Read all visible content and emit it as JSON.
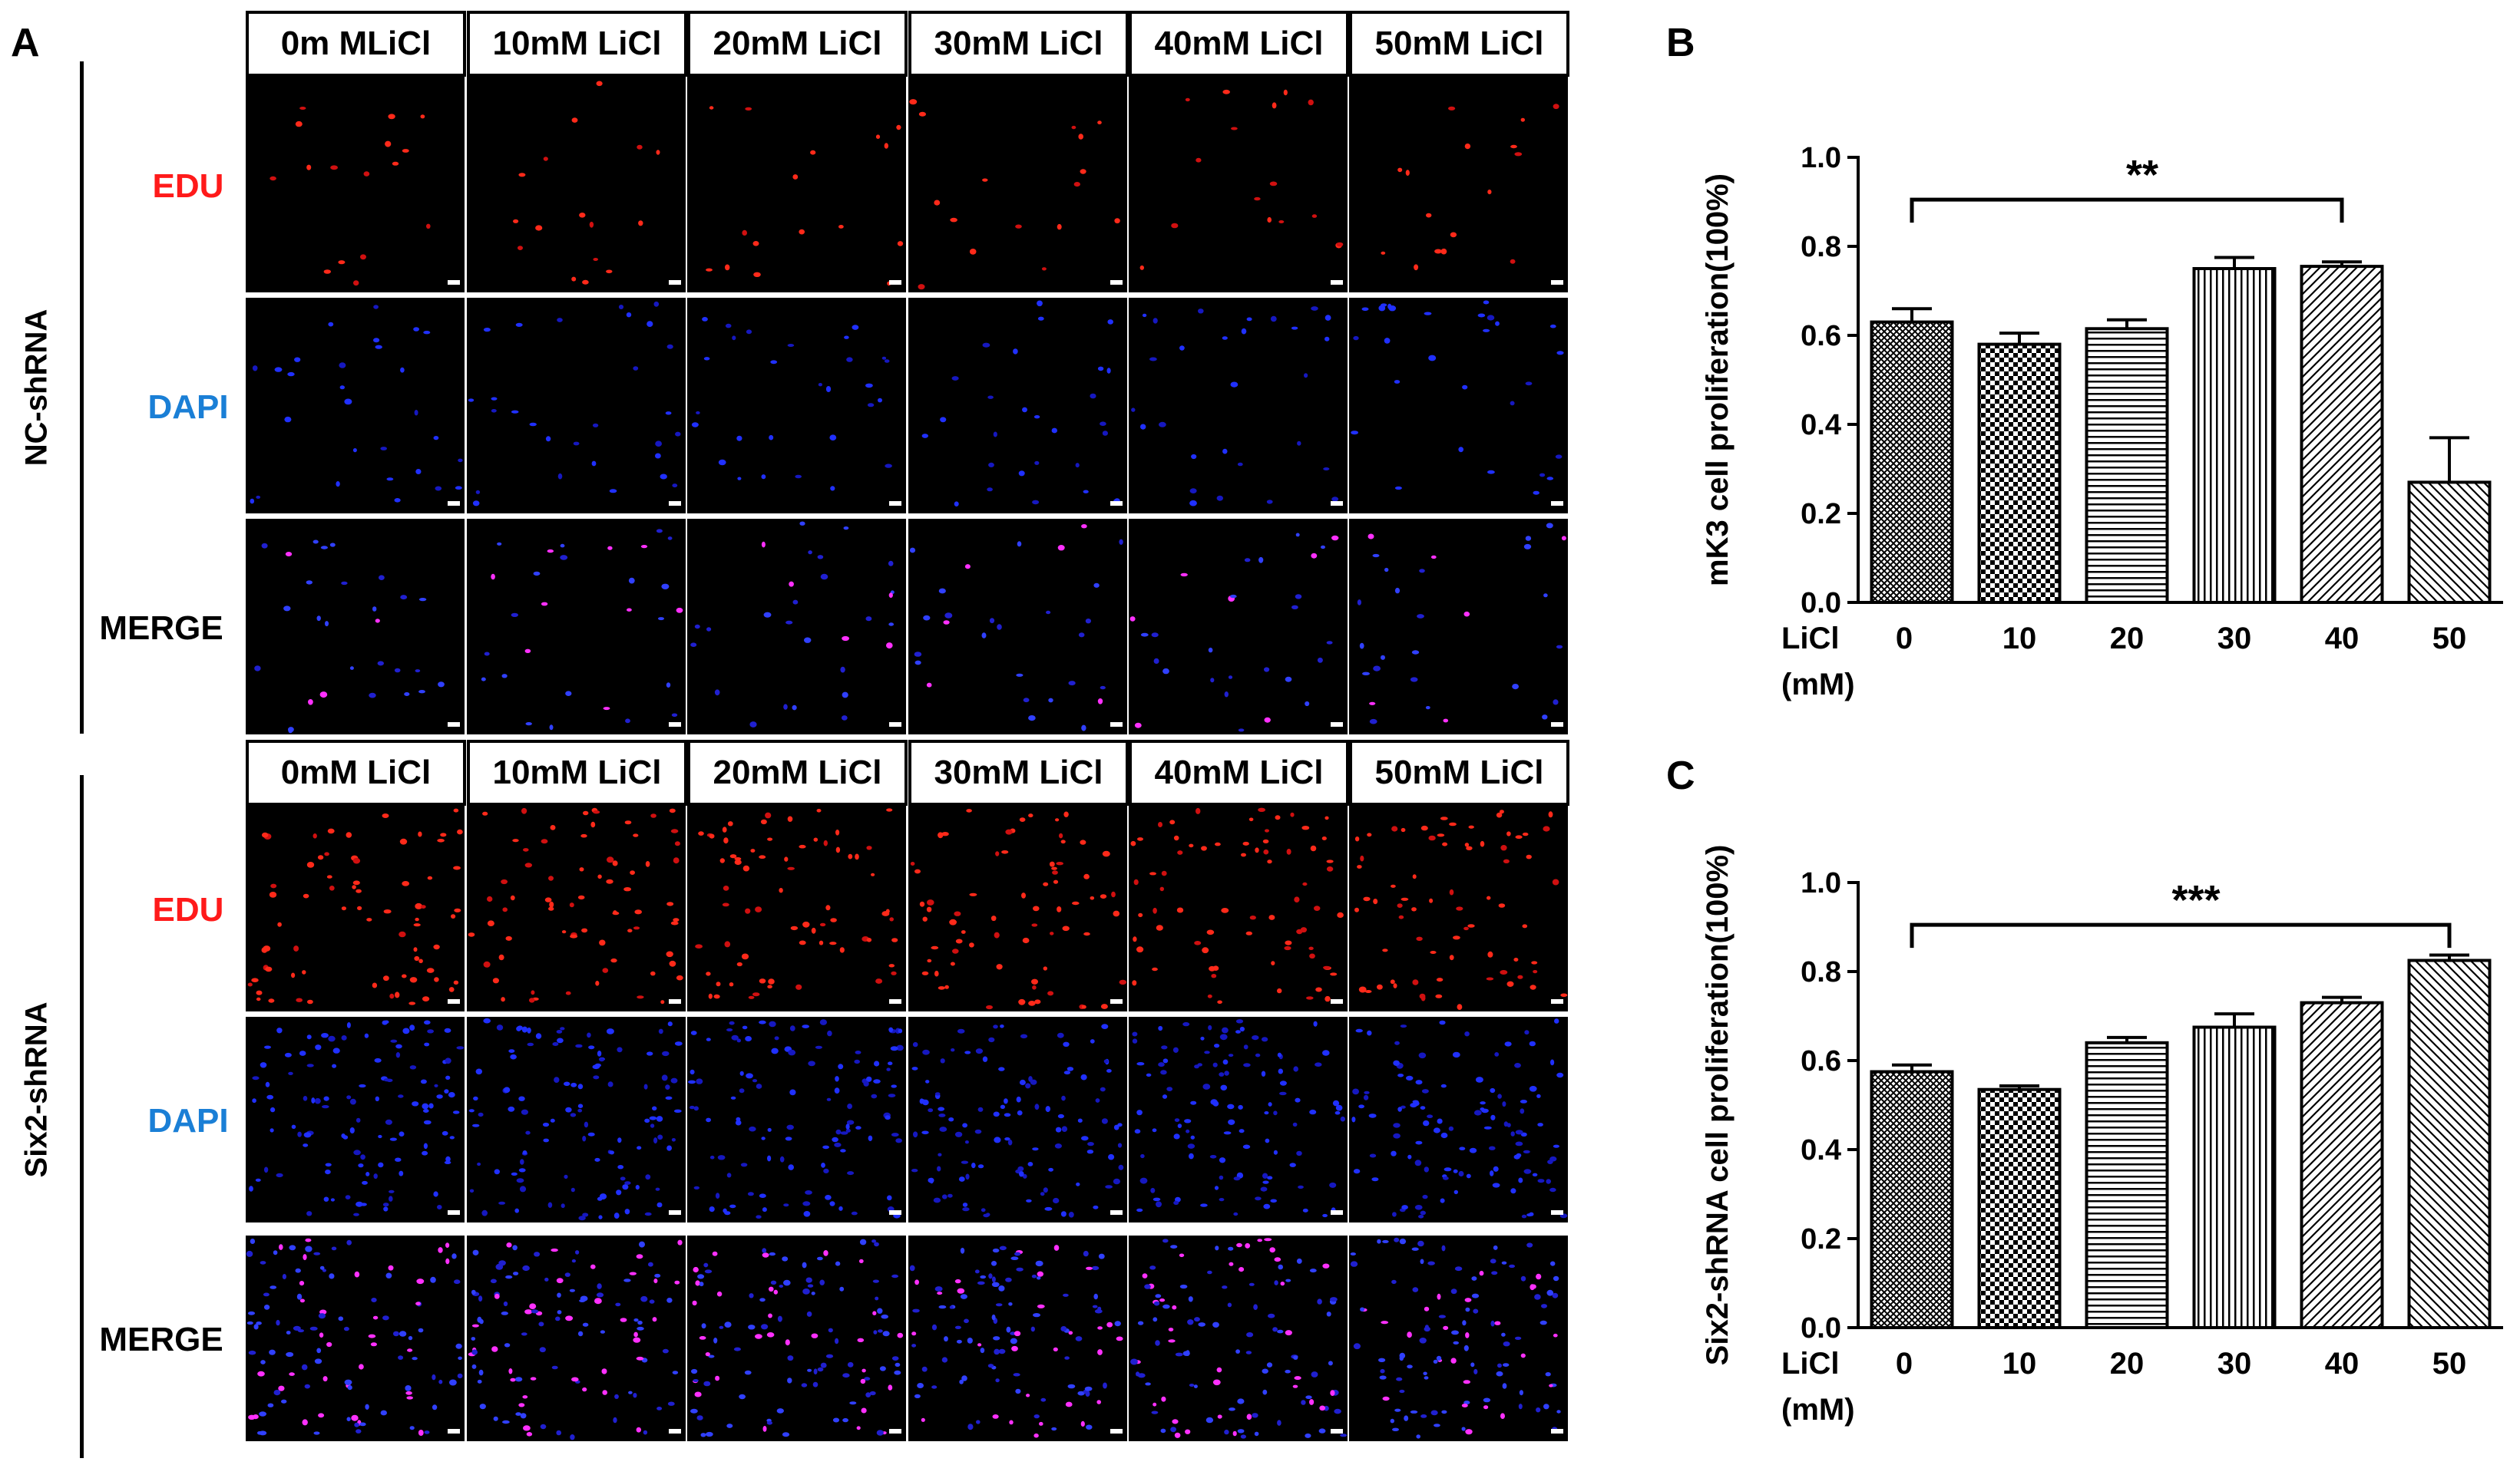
{
  "panels": {
    "A": "A",
    "B": "B",
    "C": "C"
  },
  "groups": [
    {
      "name": "NC-shRNA",
      "columns": [
        "0m MLiCl",
        "10mM LiCl",
        "20mM LiCl",
        "30mM LiCl",
        "40mM LiCl",
        "50mM LiCl"
      ],
      "rows": [
        {
          "label": "EDU",
          "color": "#ff1a1a"
        },
        {
          "label": "DAPI",
          "color": "#1a7fd6"
        },
        {
          "label": "MERGE",
          "color": "#000000"
        }
      ]
    },
    {
      "name": "Six2-shRNA",
      "columns": [
        "0mM LiCl",
        "10mM LiCl",
        "20mM LiCl",
        "30mM LiCl",
        "40mM LiCl",
        "50mM LiCl"
      ],
      "rows": [
        {
          "label": "EDU",
          "color": "#ff1a1a"
        },
        {
          "label": "DAPI",
          "color": "#1a7fd6"
        },
        {
          "label": "MERGE",
          "color": "#000000"
        }
      ]
    }
  ],
  "chart_data": [
    {
      "type": "bar",
      "panel": "B",
      "ylabel": "mK3 cell proliferation(100%)",
      "xlabel_prefix": "LiCl",
      "xlabel_unit": "(mM)",
      "categories": [
        "0",
        "10",
        "20",
        "30",
        "40",
        "50"
      ],
      "values": [
        0.63,
        0.58,
        0.615,
        0.75,
        0.755,
        0.27
      ],
      "errors": [
        0.03,
        0.025,
        0.02,
        0.025,
        0.01,
        0.1
      ],
      "patterns": [
        "crosshatch",
        "checker",
        "horizontal",
        "vertical",
        "diag-up",
        "diag-down"
      ],
      "yticks": [
        "0.0",
        "0.2",
        "0.4",
        "0.6",
        "0.8",
        "1.0"
      ],
      "ylim": [
        0,
        1.0
      ],
      "significance": {
        "from": 0,
        "to": 4,
        "label": "**"
      }
    },
    {
      "type": "bar",
      "panel": "C",
      "ylabel": "Six2-shRNA cell proliferation(100%)",
      "xlabel_prefix": "LiCl",
      "xlabel_unit": "(mM)",
      "categories": [
        "0",
        "10",
        "20",
        "30",
        "40",
        "50"
      ],
      "values": [
        0.575,
        0.535,
        0.64,
        0.675,
        0.73,
        0.825
      ],
      "errors": [
        0.015,
        0.008,
        0.012,
        0.03,
        0.012,
        0.012
      ],
      "patterns": [
        "crosshatch",
        "checker",
        "horizontal",
        "vertical",
        "diag-up",
        "diag-down"
      ],
      "yticks": [
        "0.0",
        "0.2",
        "0.4",
        "0.6",
        "0.8",
        "1.0"
      ],
      "ylim": [
        0,
        1.0
      ],
      "significance": {
        "from": 0,
        "to": 5,
        "label": "***"
      }
    }
  ]
}
